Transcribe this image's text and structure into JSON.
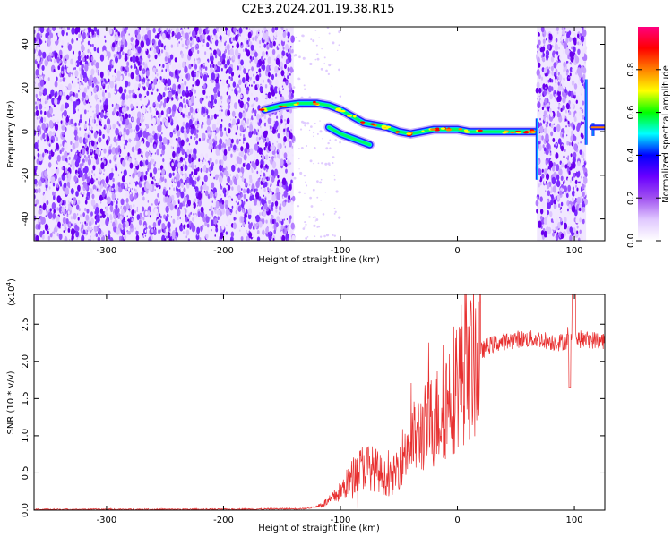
{
  "title": "C2E3.2024.201.19.38.R15",
  "chart_data": [
    {
      "type": "heatmap",
      "xlabel": "Height of straight line (km)",
      "ylabel": "Frequency (Hz)",
      "xlim": [
        -362,
        126
      ],
      "ylim": [
        -50,
        48
      ],
      "xticks": [
        -300,
        -200,
        -100,
        0,
        100
      ],
      "yticks": [
        -40,
        -20,
        0,
        20,
        40
      ],
      "colorbar": {
        "label": "Normalized spectral amplitude",
        "range": [
          0,
          1
        ],
        "ticks": [
          "0.0",
          "0.2",
          "0.4",
          "0.6",
          "0.8"
        ],
        "tick_values": [
          0.0,
          0.2,
          0.4,
          0.6,
          0.8
        ],
        "colors": [
          "#ffffff",
          "#e0c8ff",
          "#a050f0",
          "#6a00ff",
          "#0000ff",
          "#00ffff",
          "#00ff00",
          "#ffff00",
          "#ff8000",
          "#ff0000",
          "#ff0080"
        ]
      },
      "ridge": {
        "description": "bright line feature",
        "points": [
          [
            -165,
            10
          ],
          [
            -150,
            12
          ],
          [
            -135,
            13
          ],
          [
            -120,
            13
          ],
          [
            -110,
            12
          ],
          [
            -100,
            10
          ],
          [
            -90,
            7
          ],
          [
            -80,
            4
          ],
          [
            -70,
            3
          ],
          [
            -60,
            2
          ],
          [
            -50,
            0
          ],
          [
            -40,
            -1
          ],
          [
            -30,
            0
          ],
          [
            -20,
            1
          ],
          [
            -10,
            1
          ],
          [
            0,
            1
          ],
          [
            10,
            0
          ],
          [
            20,
            0
          ],
          [
            30,
            0
          ],
          [
            40,
            0
          ],
          [
            50,
            0
          ],
          [
            60,
            0
          ],
          [
            66,
            0
          ]
        ],
        "branch": [
          [
            -110,
            2
          ],
          [
            -100,
            -1
          ],
          [
            -90,
            -3
          ],
          [
            -80,
            -5
          ],
          [
            -75,
            -6
          ]
        ]
      }
    },
    {
      "type": "line",
      "xlabel": "Height of straight line (km)",
      "ylabel": "SNR (10 * v/v)",
      "scale_label": "(x10",
      "scale_exp": "4",
      "scale_close": ")",
      "xlim": [
        -362,
        126
      ],
      "ylim": [
        0,
        2.9
      ],
      "xticks": [
        -300,
        -200,
        -100,
        0,
        100
      ],
      "yticks": [
        "0.0",
        "0.5",
        "1.0",
        "1.5",
        "2.0",
        "2.5"
      ],
      "ytick_values": [
        0.0,
        0.5,
        1.0,
        1.5,
        2.0,
        2.5
      ],
      "color": "#e83030",
      "envelope": [
        [
          -362,
          0.01
        ],
        [
          -200,
          0.01
        ],
        [
          -130,
          0.02
        ],
        [
          -120,
          0.05
        ],
        [
          -110,
          0.12
        ],
        [
          -100,
          0.25
        ],
        [
          -90,
          0.45
        ],
        [
          -80,
          0.6
        ],
        [
          -70,
          0.55
        ],
        [
          -60,
          0.4
        ],
        [
          -55,
          0.45
        ],
        [
          -45,
          0.8
        ],
        [
          -35,
          1.0
        ],
        [
          -25,
          1.15
        ],
        [
          -15,
          1.3
        ],
        [
          -5,
          1.6
        ],
        [
          5,
          1.9
        ],
        [
          15,
          2.05
        ],
        [
          25,
          2.2
        ],
        [
          35,
          2.25
        ],
        [
          50,
          2.3
        ],
        [
          70,
          2.3
        ],
        [
          85,
          2.25
        ],
        [
          100,
          2.3
        ],
        [
          126,
          2.28
        ]
      ]
    }
  ]
}
